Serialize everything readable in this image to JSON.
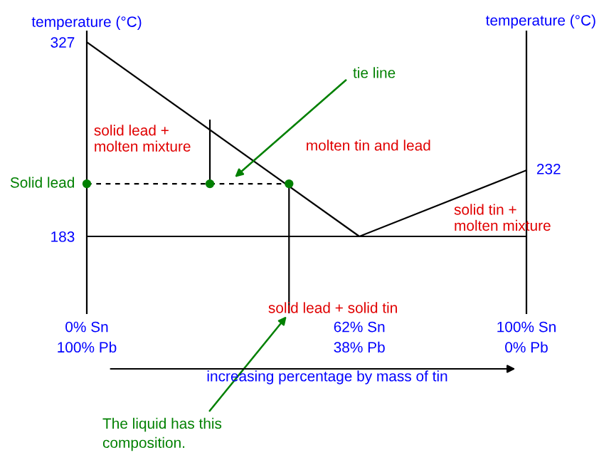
{
  "chart_data": {
    "type": "line",
    "xlabel": "increasing percentage by mass of tin",
    "ylabel": "temperature (°C)",
    "y2label": "temperature (°C)",
    "xlim": [
      0,
      100
    ],
    "xticks": [
      {
        "value": 0,
        "label": "0% Sn"
      },
      {
        "value": 62,
        "label": "62% Sn"
      },
      {
        "value": 100,
        "label": "100% Sn"
      }
    ],
    "ylim": [
      126,
      335
    ],
    "yticks": [
      183,
      327
    ],
    "grid": false,
    "series": [
      {
        "color": "#000000",
        "x": [
          0,
          62,
          100
        ],
        "values": [
          327,
          183,
          232
        ],
        "line_style": "solid",
        "marker": "none"
      },
      {
        "color": "#000000",
        "x": [
          0,
          100
        ],
        "values": [
          183,
          183
        ],
        "line_style": "solid",
        "marker": "none"
      },
      {
        "color": "#000000",
        "x": [
          0,
          46
        ],
        "values": [
          222,
          222
        ],
        "line_style": "dashed",
        "marker": "none"
      },
      {
        "color": "#000000",
        "x": [
          46,
          46
        ],
        "values": [
          222,
          126
        ],
        "line_style": "solid",
        "marker": "none"
      },
      {
        "color": "#000000",
        "x": [
          28,
          28
        ],
        "values": [
          269,
          222
        ],
        "line_style": "solid",
        "marker": "none"
      },
      {
        "type": "scatter",
        "color": "#008000",
        "x": [
          0,
          28,
          46
        ],
        "values": [
          222,
          222,
          222
        ],
        "marker": "circle"
      }
    ],
    "annotations": [
      {
        "text": "Solid lead",
        "x": 0,
        "y": 222
      },
      {
        "text": "232",
        "x": 100,
        "y": 232
      },
      "solid lead +\nmolten mixture",
      "molten tin and lead",
      "solid tin +\nmolten mixture",
      "solid lead + solid tin",
      {
        "text": "tie line",
        "x": 33,
        "y": 225
      },
      {
        "text": "The liquid has this\ncomposition.",
        "x": 46,
        "y": 126
      },
      "100% Pb",
      "38% Pb",
      "0% Pb"
    ]
  }
}
